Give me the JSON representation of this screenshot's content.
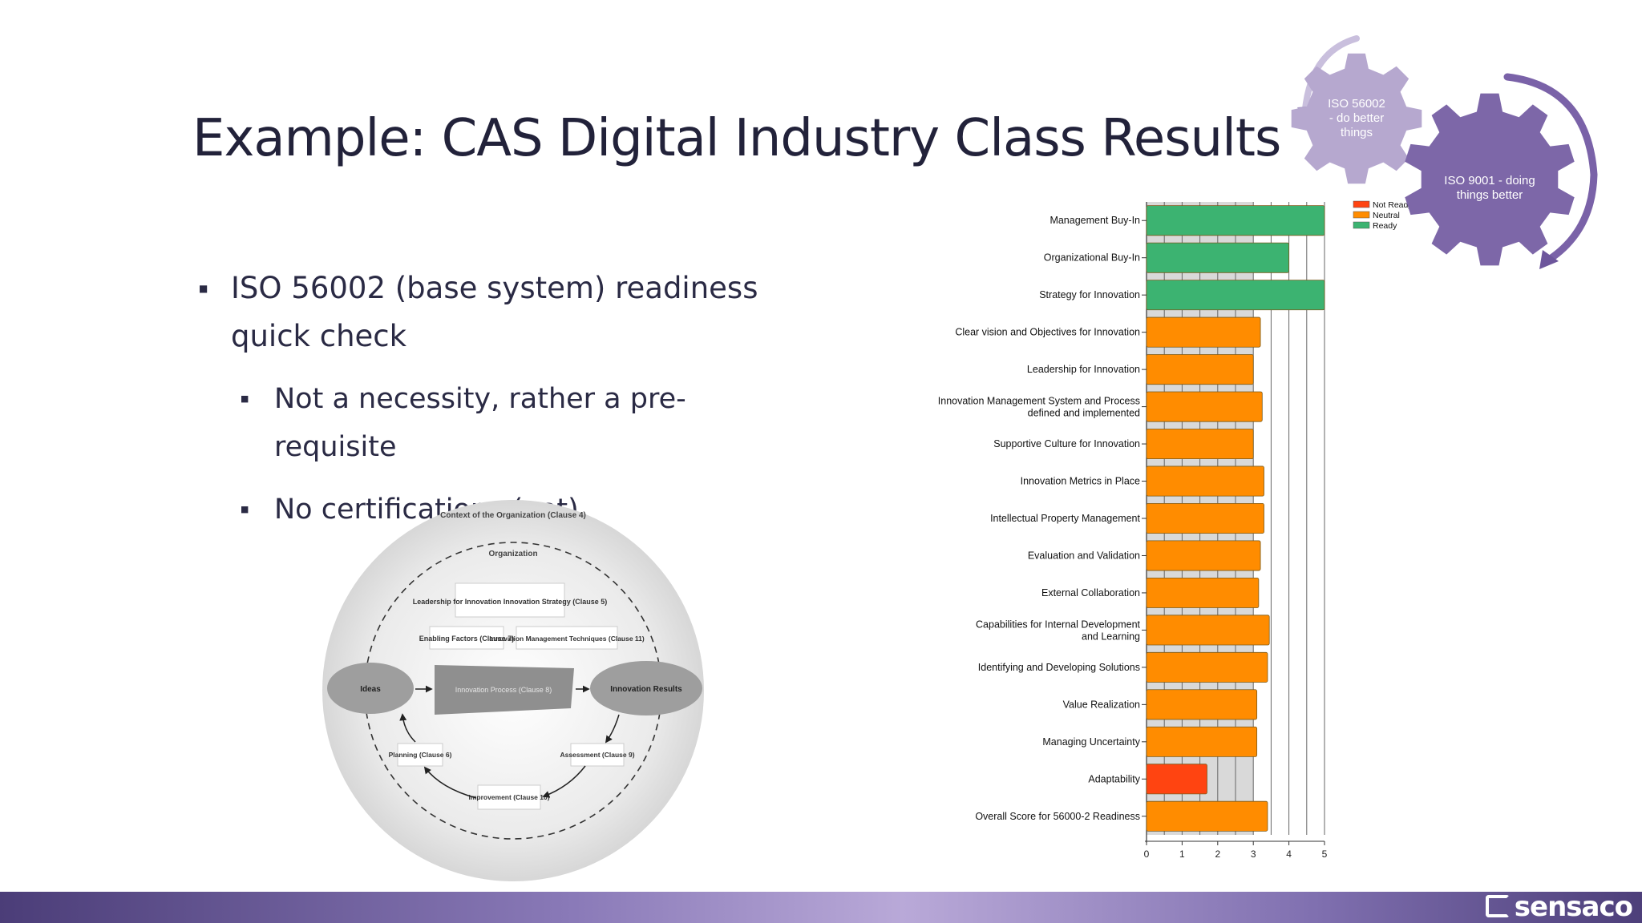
{
  "slide": {
    "title": "Example: CAS Digital Industry Class Results",
    "bullets": {
      "main": "ISO 56002 (base system) readiness quick check",
      "sub": [
        "Not a necessity, rather a pre-requisite",
        "No certifications (yet)"
      ]
    }
  },
  "gears": {
    "small_label": "ISO 56002 - do better things",
    "large_label": "ISO 9001 - doing things better",
    "colors": {
      "small": "#b6a8cf",
      "large": "#7d67a8"
    }
  },
  "diagram": {
    "outer": "Context of the Organization (Clause 4)",
    "org": "Organization",
    "leadership": "Leadership for Innovation Innovation Strategy (Clause 5)",
    "enabling": "Enabling Factors (Clause 7)",
    "techniques": "Innovation Management Techniques (Clause 11)",
    "ideas": "Ideas",
    "process": "Innovation Process (Clause 8)",
    "results": "Innovation Results",
    "planning": "Planning (Clause 6)",
    "assessment": "Assessment (Clause 9)",
    "improvement": "Improvement (Clause 10)"
  },
  "chart_data": {
    "type": "bar",
    "orientation": "horizontal",
    "categories": [
      "Management Buy-In",
      "Organizational Buy-In",
      "Strategy for Innovation",
      "Clear vision and Objectives for Innovation",
      "Leadership for Innovation",
      "Innovation Management System and Process defined and implemented",
      "Supportive Culture for Innovation",
      "Innovation Metrics in Place",
      "Intellectual Property Management",
      "Evaluation and Validation",
      "External Collaboration",
      "Capabilities for Internal Development and Learning",
      "Identifying and Developing Solutions",
      "Value Realization",
      "Managing Uncertainty",
      "Adaptability",
      "Overall Score for 56000-2 Readiness"
    ],
    "values": [
      5.0,
      4.0,
      5.0,
      3.2,
      3.0,
      3.25,
      3.0,
      3.3,
      3.3,
      3.2,
      3.15,
      3.45,
      3.4,
      3.1,
      3.1,
      1.7,
      3.4
    ],
    "status": [
      "Ready",
      "Ready",
      "Ready",
      "Neutral",
      "Neutral",
      "Neutral",
      "Neutral",
      "Neutral",
      "Neutral",
      "Neutral",
      "Neutral",
      "Neutral",
      "Neutral",
      "Neutral",
      "Neutral",
      "Not Ready",
      "Neutral"
    ],
    "xlim": [
      0,
      5
    ],
    "xticks": [
      "0",
      "1",
      "2",
      "3",
      "4",
      "5"
    ],
    "grid": true,
    "legend": [
      "Not Ready",
      "Neutral",
      "Ready"
    ],
    "legend_position": "top-right",
    "colors": {
      "Not Ready": "#ff4411",
      "Neutral": "#ff8c00",
      "Ready": "#3cb371"
    }
  }
}
